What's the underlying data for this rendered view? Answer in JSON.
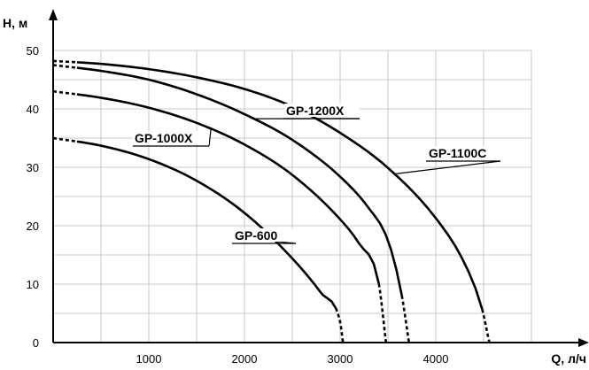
{
  "chart_data": {
    "type": "line",
    "xlabel": "Q, л/ч",
    "ylabel": "H, м",
    "xlim": [
      0,
      5000
    ],
    "ylim": [
      0,
      50
    ],
    "x_ticks": [
      1000,
      2000,
      3000,
      4000
    ],
    "y_ticks": [
      0,
      10,
      20,
      30,
      40,
      50
    ],
    "grid": true,
    "series": [
      {
        "name": "GP-600",
        "x": [
          0,
          500,
          1000,
          1500,
          2000,
          2500,
          2800,
          3000,
          3030
        ],
        "values": [
          35,
          33.7,
          31.4,
          27.7,
          22.2,
          14.4,
          8.5,
          3.5,
          0
        ]
      },
      {
        "name": "GP-1000X",
        "x": [
          0,
          500,
          1000,
          1500,
          2000,
          2500,
          3000,
          3200,
          3400,
          3480
        ],
        "values": [
          43,
          41.9,
          40.2,
          37.6,
          33.9,
          28.7,
          21.1,
          16.9,
          10.5,
          0
        ]
      },
      {
        "name": "GP-1200X",
        "x": [
          0,
          500,
          1000,
          1500,
          2000,
          2500,
          3000,
          3300,
          3500,
          3640,
          3720
        ],
        "values": [
          47.5,
          46.5,
          45,
          42.5,
          39.1,
          34.7,
          28.4,
          23,
          17.5,
          8.5,
          0
        ]
      },
      {
        "name": "GP-1100C",
        "x": [
          0,
          500,
          1000,
          1500,
          2000,
          2500,
          3000,
          3500,
          4000,
          4300,
          4480,
          4560
        ],
        "values": [
          48.2,
          47.7,
          46.8,
          45.4,
          43.4,
          40.4,
          35.9,
          29.9,
          21.3,
          13.6,
          6,
          0
        ]
      }
    ]
  }
}
